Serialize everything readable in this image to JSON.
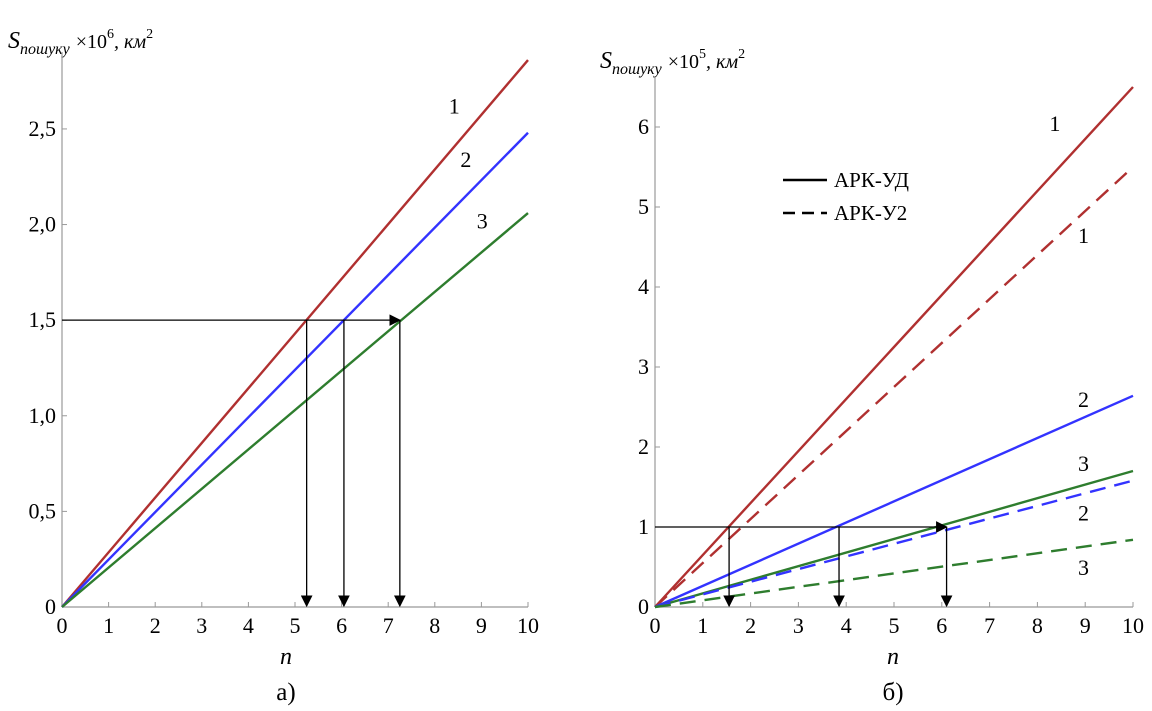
{
  "chart_data": [
    {
      "type": "line",
      "caption": "а)",
      "ylabel_main": "S",
      "ylabel_sub": "пошуку",
      "ylabel_scale": "×10",
      "ylabel_exp": "6",
      "ylabel_unit": ", км",
      "ylabel_unit_exp": "2",
      "xlabel": "n",
      "xlim": [
        0,
        10
      ],
      "ylim": [
        0,
        2.85
      ],
      "x_ticks": [
        "0",
        "1",
        "2",
        "3",
        "4",
        "5",
        "6",
        "7",
        "8",
        "9",
        "10"
      ],
      "y_ticks": [
        {
          "v": 0,
          "label": "0"
        },
        {
          "v": 0.5,
          "label": "0,5"
        },
        {
          "v": 1.0,
          "label": "1,0"
        },
        {
          "v": 1.5,
          "label": "1,5"
        },
        {
          "v": 2.0,
          "label": "2,0"
        },
        {
          "v": 2.5,
          "label": "2,5"
        }
      ],
      "series": [
        {
          "label": "1",
          "color": "#b03030",
          "dash": false,
          "x": [
            0,
            10
          ],
          "y": [
            0,
            2.86
          ],
          "label_at": [
            8.3,
            2.58
          ]
        },
        {
          "label": "2",
          "color": "#3333ff",
          "dash": false,
          "x": [
            0,
            10
          ],
          "y": [
            0,
            2.48
          ],
          "label_at": [
            8.55,
            2.3
          ]
        },
        {
          "label": "3",
          "color": "#2e7d2e",
          "dash": false,
          "x": [
            0,
            10
          ],
          "y": [
            0,
            2.06
          ],
          "label_at": [
            8.9,
            1.98
          ]
        }
      ],
      "guide": {
        "y": 1.5,
        "x_end": 7.25,
        "drops": [
          5.25,
          6.05,
          7.25
        ]
      }
    },
    {
      "type": "line",
      "caption": "б)",
      "ylabel_main": "S",
      "ylabel_sub": "пошуку",
      "ylabel_scale": "×10",
      "ylabel_exp": "5",
      "ylabel_unit": ", км",
      "ylabel_unit_exp": "2",
      "xlabel": "n",
      "xlim": [
        0,
        10
      ],
      "ylim": [
        0,
        6.5
      ],
      "x_ticks": [
        "0",
        "1",
        "2",
        "3",
        "4",
        "5",
        "6",
        "7",
        "8",
        "9",
        "10"
      ],
      "y_ticks": [
        {
          "v": 0,
          "label": "0"
        },
        {
          "v": 1,
          "label": "1"
        },
        {
          "v": 2,
          "label": "2"
        },
        {
          "v": 3,
          "label": "3"
        },
        {
          "v": 4,
          "label": "4"
        },
        {
          "v": 5,
          "label": "5"
        },
        {
          "v": 6,
          "label": "6"
        }
      ],
      "series": [
        {
          "label": "1",
          "color": "#b03030",
          "dash": false,
          "x": [
            0,
            10
          ],
          "y": [
            0,
            6.5
          ],
          "label_at": [
            8.25,
            5.95
          ]
        },
        {
          "label": "1",
          "color": "#b03030",
          "dash": true,
          "x": [
            0,
            10
          ],
          "y": [
            0,
            5.5
          ],
          "label_at": [
            8.85,
            4.55
          ]
        },
        {
          "label": "2",
          "color": "#3333ff",
          "dash": false,
          "x": [
            0,
            10
          ],
          "y": [
            0,
            2.64
          ],
          "label_at": [
            8.85,
            2.5
          ]
        },
        {
          "label": "3",
          "color": "#2e7d2e",
          "dash": false,
          "x": [
            0,
            10
          ],
          "y": [
            0,
            1.7
          ],
          "label_at": [
            8.85,
            1.7
          ]
        },
        {
          "label": "2",
          "color": "#3333ff",
          "dash": true,
          "x": [
            0,
            10
          ],
          "y": [
            0,
            1.58
          ],
          "label_at": [
            8.85,
            1.08
          ]
        },
        {
          "label": "3",
          "color": "#2e7d2e",
          "dash": true,
          "x": [
            0,
            10
          ],
          "y": [
            0,
            0.84
          ],
          "label_at": [
            8.85,
            0.4
          ]
        }
      ],
      "guide": {
        "y": 1.0,
        "x_end": 6.1,
        "drops": [
          1.55,
          3.85,
          6.1
        ]
      },
      "legend": [
        {
          "label": "АРК-УД",
          "dash": false
        },
        {
          "label": "АРК-У2",
          "dash": true
        }
      ]
    }
  ]
}
